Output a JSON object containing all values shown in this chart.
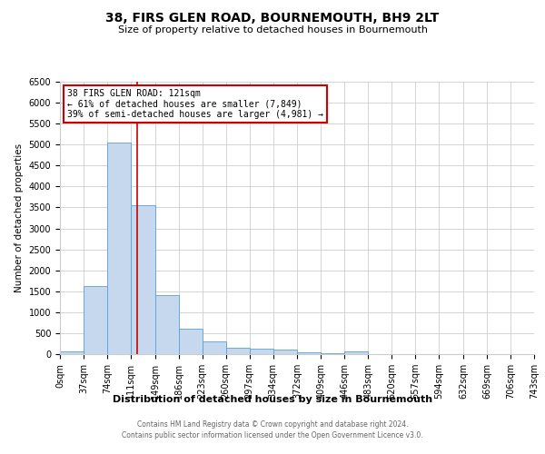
{
  "title": "38, FIRS GLEN ROAD, BOURNEMOUTH, BH9 2LT",
  "subtitle": "Size of property relative to detached houses in Bournemouth",
  "xlabel": "Distribution of detached houses by size in Bournemouth",
  "ylabel": "Number of detached properties",
  "bin_edges": [
    0,
    37,
    74,
    111,
    149,
    186,
    223,
    260,
    297,
    334,
    372,
    409,
    446,
    483,
    520,
    557,
    594,
    632,
    669,
    706,
    743
  ],
  "bar_heights": [
    75,
    1620,
    5050,
    3560,
    1400,
    610,
    300,
    155,
    140,
    100,
    50,
    30,
    60,
    0,
    0,
    0,
    0,
    0,
    0,
    0
  ],
  "bar_color": "#c5d8ed",
  "bar_edge_color": "#5a9fd4",
  "vline_x": 121,
  "vline_color": "#cc0000",
  "ylim": [
    0,
    6500
  ],
  "yticks": [
    0,
    500,
    1000,
    1500,
    2000,
    2500,
    3000,
    3500,
    4000,
    4500,
    5000,
    5500,
    6000,
    6500
  ],
  "annotation_title": "38 FIRS GLEN ROAD: 121sqm",
  "annotation_line1": "← 61% of detached houses are smaller (7,849)",
  "annotation_line2": "39% of semi-detached houses are larger (4,981) →",
  "annotation_box_color": "#ffffff",
  "annotation_box_edge_color": "#cc0000",
  "footer1": "Contains HM Land Registry data © Crown copyright and database right 2024.",
  "footer2": "Contains public sector information licensed under the Open Government Licence v3.0.",
  "bg_color": "#ffffff",
  "grid_color": "#cccccc",
  "title_fontsize": 10,
  "subtitle_fontsize": 8,
  "xlabel_fontsize": 8,
  "ylabel_fontsize": 7.5,
  "tick_fontsize": 7,
  "footer_fontsize": 5.5,
  "annotation_fontsize": 7
}
